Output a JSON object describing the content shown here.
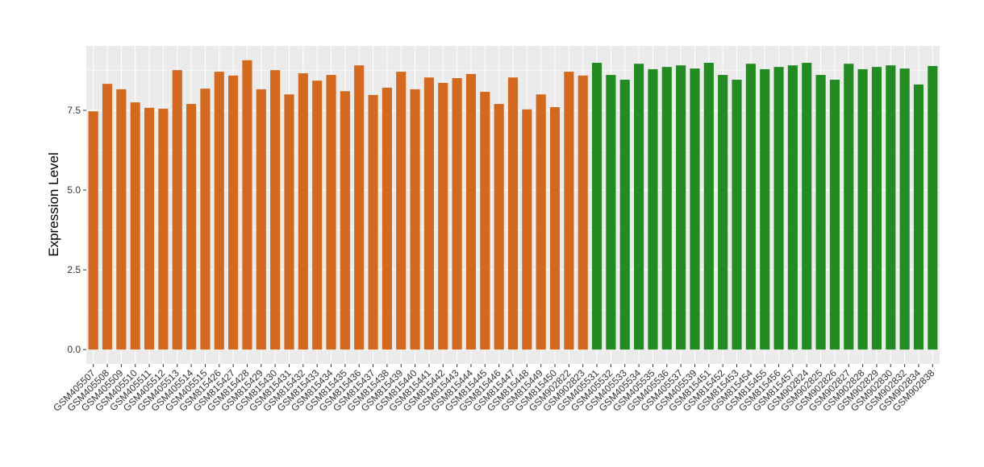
{
  "chart_data": {
    "type": "bar",
    "y_label": "Expression Level",
    "categories": [
      "GSM405507",
      "GSM405508",
      "GSM405509",
      "GSM405510",
      "GSM405511",
      "GSM405512",
      "GSM405513",
      "GSM405514",
      "GSM405515",
      "GSM815426",
      "GSM815427",
      "GSM815428",
      "GSM815429",
      "GSM815430",
      "GSM815431",
      "GSM815432",
      "GSM815433",
      "GSM815434",
      "GSM815435",
      "GSM815436",
      "GSM815437",
      "GSM815438",
      "GSM815439",
      "GSM815440",
      "GSM815441",
      "GSM815442",
      "GSM815443",
      "GSM815444",
      "GSM815445",
      "GSM815446",
      "GSM815447",
      "GSM815448",
      "GSM815449",
      "GSM815450",
      "GSM902822",
      "GSM902823",
      "GSM405531",
      "GSM405532",
      "GSM405533",
      "GSM405534",
      "GSM405535",
      "GSM405536",
      "GSM405537",
      "GSM405539",
      "GSM815451",
      "GSM815452",
      "GSM815453",
      "GSM815454",
      "GSM815455",
      "GSM815456",
      "GSM815457",
      "GSM902824",
      "GSM902825",
      "GSM902826",
      "GSM902827",
      "GSM902828",
      "GSM902829",
      "GSM902830",
      "GSM902832",
      "GSM902834",
      "GSM902838"
    ],
    "series": [
      {
        "color": "#d2691e",
        "values": [
          7.47,
          8.33,
          8.16,
          7.75,
          7.58,
          7.55,
          8.76,
          7.7,
          8.18,
          8.71,
          8.59,
          9.07,
          8.16,
          8.76,
          8.0,
          8.66,
          8.43,
          8.61,
          8.1,
          8.91,
          7.98,
          8.21,
          8.71,
          8.16,
          8.53,
          8.36,
          8.51,
          8.64,
          8.08,
          7.7,
          8.53,
          7.53,
          8.0,
          7.6,
          8.71,
          8.59,
          null,
          null,
          null,
          null,
          null,
          null,
          null,
          null,
          null,
          null,
          null,
          null,
          null,
          null,
          null,
          null,
          null,
          null,
          null,
          null,
          null,
          null,
          null,
          null,
          null
        ]
      },
      {
        "color": "#228b22",
        "values": [
          null,
          null,
          null,
          null,
          null,
          null,
          null,
          null,
          null,
          null,
          null,
          null,
          null,
          null,
          null,
          null,
          null,
          null,
          null,
          null,
          null,
          null,
          null,
          null,
          null,
          null,
          null,
          null,
          null,
          null,
          null,
          null,
          null,
          null,
          null,
          null,
          8.99,
          8.61,
          8.46,
          8.96,
          8.79,
          8.86,
          8.91,
          8.81,
          8.99,
          8.61,
          8.46,
          8.96,
          8.79,
          8.86,
          8.91,
          8.99,
          8.61,
          8.46,
          8.96,
          8.79,
          8.86,
          8.91,
          8.81,
          8.31,
          8.89
        ]
      }
    ],
    "ylim": [
      -0.45,
      9.52
    ],
    "yticks": [
      {
        "value": 0,
        "label": "0.0"
      },
      {
        "value": 2.5,
        "label": "2.5"
      },
      {
        "value": 5,
        "label": "5.0"
      },
      {
        "value": 7.5,
        "label": "7.5"
      }
    ],
    "grid": true
  }
}
